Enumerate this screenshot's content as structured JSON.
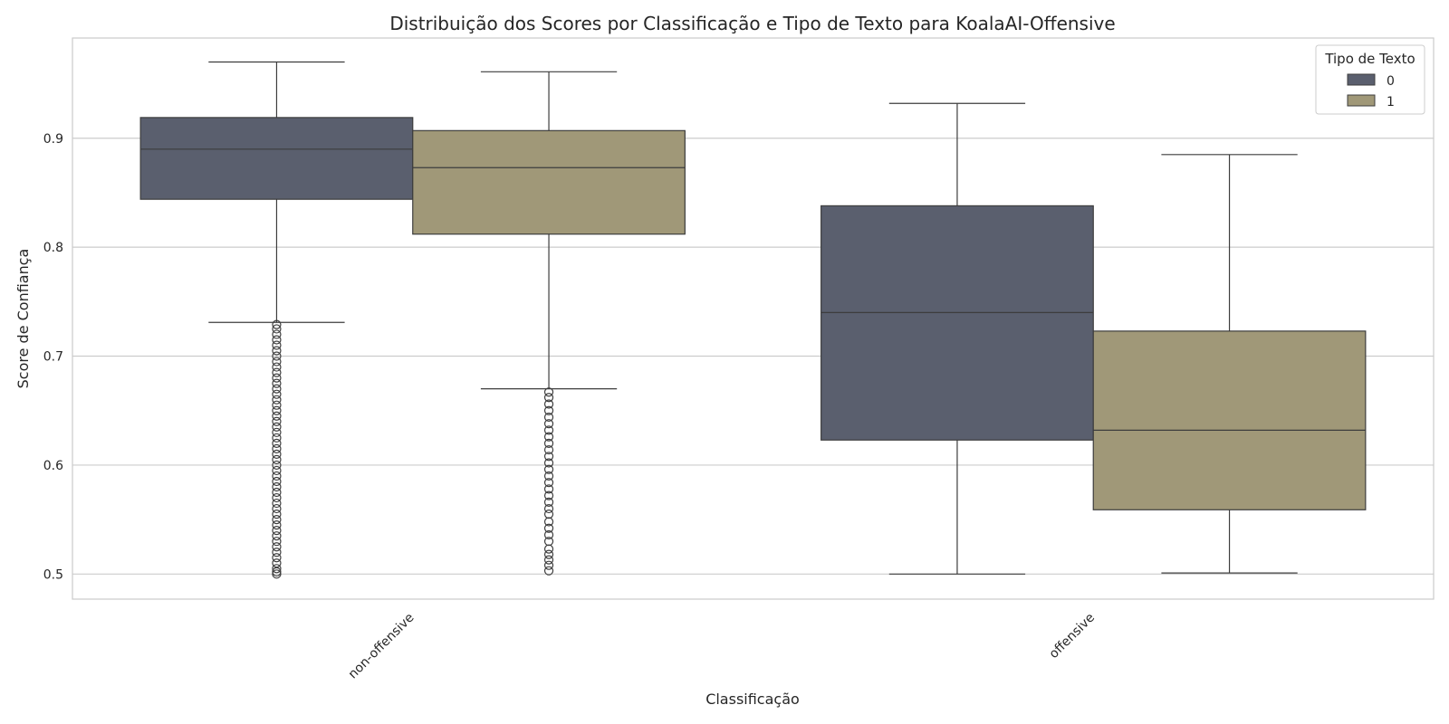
{
  "chart_data": {
    "type": "box",
    "title": "Distribuição dos Scores por Classificação e Tipo de Texto para KoalaAI-Offensive",
    "xlabel": "Classificação",
    "ylabel": "Score de Confiança",
    "categories": [
      "non-offensive",
      "offensive"
    ],
    "ylim": [
      0.477,
      0.992
    ],
    "yticks": [
      0.5,
      0.6,
      0.7,
      0.8,
      0.9
    ],
    "grid": "y",
    "legend": {
      "title": "Tipo de Texto",
      "placement": "top-right",
      "entries": [
        {
          "name": "0",
          "color": "#5a5f6e"
        },
        {
          "name": "1",
          "color": "#a09878"
        }
      ]
    },
    "series": [
      {
        "name": "0",
        "color": "#5a5f6e",
        "boxes": [
          {
            "category": "non-offensive",
            "whisker_low": 0.731,
            "q1": 0.844,
            "median": 0.89,
            "q3": 0.919,
            "whisker_high": 0.97,
            "outliers": [
              0.5,
              0.502,
              0.505,
              0.51,
              0.515,
              0.52,
              0.525,
              0.53,
              0.535,
              0.54,
              0.545,
              0.55,
              0.555,
              0.56,
              0.565,
              0.57,
              0.575,
              0.58,
              0.585,
              0.59,
              0.595,
              0.6,
              0.605,
              0.61,
              0.615,
              0.62,
              0.625,
              0.63,
              0.635,
              0.64,
              0.645,
              0.65,
              0.655,
              0.66,
              0.665,
              0.67,
              0.675,
              0.68,
              0.685,
              0.69,
              0.695,
              0.7,
              0.705,
              0.71,
              0.715,
              0.72,
              0.725,
              0.729
            ]
          },
          {
            "category": "offensive",
            "whisker_low": 0.5,
            "q1": 0.623,
            "median": 0.74,
            "q3": 0.838,
            "whisker_high": 0.932,
            "outliers": []
          }
        ]
      },
      {
        "name": "1",
        "color": "#a09878",
        "boxes": [
          {
            "category": "non-offensive",
            "whisker_low": 0.67,
            "q1": 0.812,
            "median": 0.873,
            "q3": 0.907,
            "whisker_high": 0.961,
            "outliers": [
              0.503,
              0.508,
              0.513,
              0.518,
              0.523,
              0.53,
              0.536,
              0.542,
              0.548,
              0.555,
              0.56,
              0.566,
              0.572,
              0.578,
              0.584,
              0.59,
              0.596,
              0.602,
              0.608,
              0.614,
              0.62,
              0.626,
              0.632,
              0.638,
              0.644,
              0.65,
              0.656,
              0.662,
              0.667
            ]
          },
          {
            "category": "offensive",
            "whisker_low": 0.501,
            "q1": 0.559,
            "median": 0.632,
            "q3": 0.723,
            "whisker_high": 0.885,
            "outliers": []
          }
        ]
      }
    ]
  }
}
